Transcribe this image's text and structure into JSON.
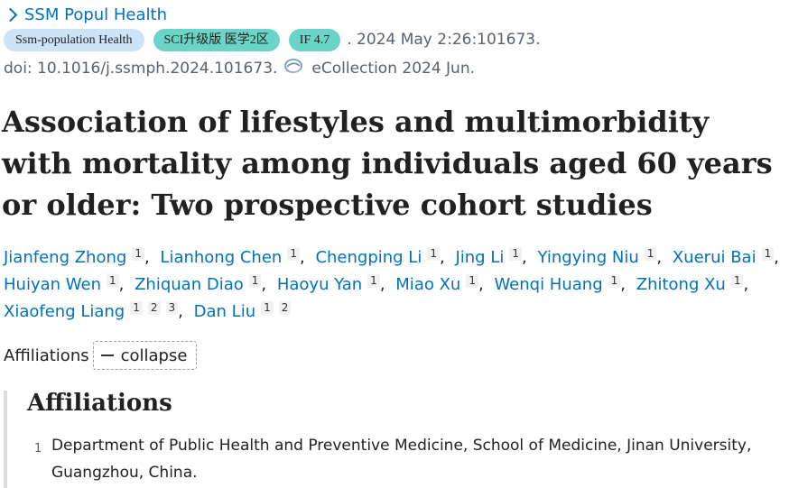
{
  "journal": {
    "name": "SSM Popul Health"
  },
  "badges": {
    "journal_abbr": "Ssm-population Health",
    "sci_rank": "SCI升级版 医学2区",
    "impact_factor": "IF 4.7"
  },
  "citation": {
    "pub_info": ". 2024 May 2:26:101673.",
    "doi": "doi: 10.1016/j.ssmph.2024.101673.",
    "ecollection": "eCollection 2024 Jun."
  },
  "article": {
    "title": "Association of lifestyles and multimorbidity with mortality among individuals aged 60 years or older: Two prospective cohort studies"
  },
  "authors": [
    {
      "name": "Jianfeng Zhong",
      "affs": [
        "1"
      ]
    },
    {
      "name": "Lianhong Chen",
      "affs": [
        "1"
      ]
    },
    {
      "name": "Chengping Li",
      "affs": [
        "1"
      ]
    },
    {
      "name": "Jing Li",
      "affs": [
        "1"
      ]
    },
    {
      "name": "Yingying Niu",
      "affs": [
        "1"
      ]
    },
    {
      "name": "Xuerui Bai",
      "affs": [
        "1"
      ]
    },
    {
      "name": "Huiyan Wen",
      "affs": [
        "1"
      ]
    },
    {
      "name": "Zhiquan Diao",
      "affs": [
        "1"
      ]
    },
    {
      "name": "Haoyu Yan",
      "affs": [
        "1"
      ]
    },
    {
      "name": "Miao Xu",
      "affs": [
        "1"
      ]
    },
    {
      "name": "Wenqi Huang",
      "affs": [
        "1"
      ]
    },
    {
      "name": "Zhitong Xu",
      "affs": [
        "1"
      ]
    },
    {
      "name": "Xiaofeng Liang",
      "affs": [
        "1",
        "2",
        "3"
      ]
    },
    {
      "name": "Dan Liu",
      "affs": [
        "1",
        "2"
      ]
    }
  ],
  "affiliations_toggle": {
    "label": "Affiliations",
    "button_label": "collapse"
  },
  "affiliations_panel": {
    "heading": "Affiliations",
    "items": [
      {
        "num": "1",
        "text": "Department of Public Health and Preventive Medicine, School of Medicine, Jinan University, Guangzhou, China."
      }
    ]
  },
  "colors": {
    "link": "#0071bc",
    "badge_blue": "#cde3f8",
    "badge_teal": "#6ad4c6",
    "muted": "#5b616b"
  },
  "icons": {
    "journal": "chevron-right-icon",
    "ecollection": "ecollection-icon",
    "collapse": "minus-icon"
  }
}
